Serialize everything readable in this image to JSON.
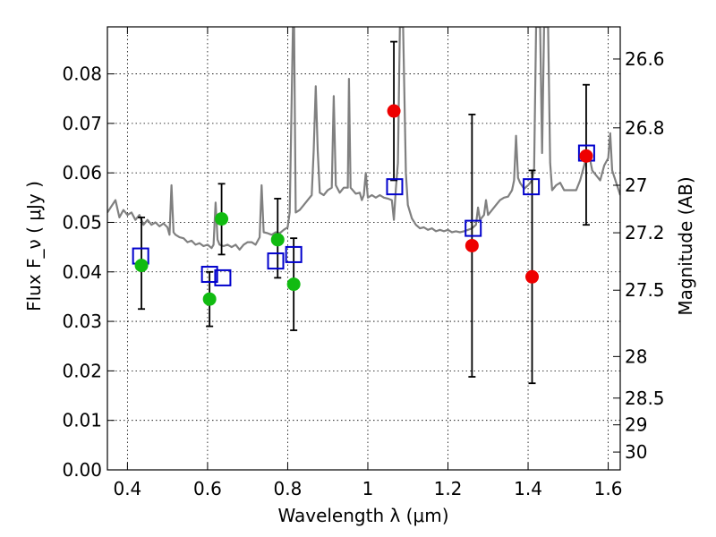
{
  "chart_data": {
    "type": "scatter",
    "xlabel": "Wavelength  λ (μm)",
    "ylabel": "Flux  F_ν  ( μJy )",
    "y2label": "Magnitude (AB)",
    "xlim": [
      0.35,
      1.63
    ],
    "ylim": [
      0.0,
      0.0895
    ],
    "grid": true,
    "x_ticks": [
      "0.4",
      "0.6",
      "0.8",
      "1",
      "1.2",
      "1.4",
      "1.6"
    ],
    "y_ticks": [
      "0.00",
      "0.01",
      "0.02",
      "0.03",
      "0.04",
      "0.05",
      "0.06",
      "0.07",
      "0.08"
    ],
    "y2_ticks": [
      {
        "label": "26.6",
        "flux": 0.083
      },
      {
        "label": "26.8",
        "flux": 0.0691
      },
      {
        "label": "27",
        "flux": 0.0575
      },
      {
        "label": "27.2",
        "flux": 0.0479
      },
      {
        "label": "27.5",
        "flux": 0.0363
      },
      {
        "label": "28",
        "flux": 0.0229
      },
      {
        "label": "28.5",
        "flux": 0.0145
      },
      {
        "label": "29",
        "flux": 0.0091
      },
      {
        "label": "30",
        "flux": 0.0036
      }
    ],
    "colors": {
      "spectrum": "#808080",
      "green": "#11bb11",
      "red": "#ee0000",
      "square": "#0000cc",
      "errorbar": "#000000",
      "grid": "#000000"
    },
    "series": [
      {
        "kind": "spectrum-line",
        "points": [
          [
            0.35,
            0.052
          ],
          [
            0.37,
            0.0545
          ],
          [
            0.38,
            0.051
          ],
          [
            0.39,
            0.0525
          ],
          [
            0.4,
            0.0515
          ],
          [
            0.41,
            0.052
          ],
          [
            0.42,
            0.0505
          ],
          [
            0.43,
            0.0515
          ],
          [
            0.44,
            0.0495
          ],
          [
            0.45,
            0.0505
          ],
          [
            0.46,
            0.0495
          ],
          [
            0.47,
            0.05
          ],
          [
            0.48,
            0.0492
          ],
          [
            0.49,
            0.0498
          ],
          [
            0.5,
            0.049
          ],
          [
            0.505,
            0.0475
          ],
          [
            0.51,
            0.0575
          ],
          [
            0.515,
            0.048
          ],
          [
            0.52,
            0.0475
          ],
          [
            0.53,
            0.047
          ],
          [
            0.54,
            0.0468
          ],
          [
            0.55,
            0.046
          ],
          [
            0.56,
            0.0463
          ],
          [
            0.57,
            0.0455
          ],
          [
            0.58,
            0.0458
          ],
          [
            0.59,
            0.0452
          ],
          [
            0.6,
            0.0455
          ],
          [
            0.61,
            0.0448
          ],
          [
            0.615,
            0.0455
          ],
          [
            0.62,
            0.054
          ],
          [
            0.625,
            0.0465
          ],
          [
            0.63,
            0.0455
          ],
          [
            0.64,
            0.0452
          ],
          [
            0.65,
            0.0455
          ],
          [
            0.66,
            0.045
          ],
          [
            0.67,
            0.0455
          ],
          [
            0.68,
            0.0445
          ],
          [
            0.69,
            0.0455
          ],
          [
            0.7,
            0.046
          ],
          [
            0.71,
            0.046
          ],
          [
            0.72,
            0.0455
          ],
          [
            0.73,
            0.047
          ],
          [
            0.735,
            0.0575
          ],
          [
            0.74,
            0.048
          ],
          [
            0.75,
            0.0478
          ],
          [
            0.76,
            0.0475
          ],
          [
            0.77,
            0.048
          ],
          [
            0.78,
            0.0478
          ],
          [
            0.79,
            0.0485
          ],
          [
            0.8,
            0.049
          ],
          [
            0.805,
            0.052
          ],
          [
            0.81,
            0.075
          ],
          [
            0.813,
            0.0895
          ],
          [
            0.816,
            0.0895
          ],
          [
            0.82,
            0.052
          ],
          [
            0.83,
            0.0525
          ],
          [
            0.84,
            0.0535
          ],
          [
            0.85,
            0.0545
          ],
          [
            0.86,
            0.0555
          ],
          [
            0.865,
            0.0645
          ],
          [
            0.87,
            0.0775
          ],
          [
            0.875,
            0.0645
          ],
          [
            0.88,
            0.056
          ],
          [
            0.89,
            0.0555
          ],
          [
            0.9,
            0.0565
          ],
          [
            0.91,
            0.057
          ],
          [
            0.915,
            0.0755
          ],
          [
            0.92,
            0.0575
          ],
          [
            0.93,
            0.056
          ],
          [
            0.94,
            0.057
          ],
          [
            0.95,
            0.057
          ],
          [
            0.953,
            0.079
          ],
          [
            0.957,
            0.057
          ],
          [
            0.97,
            0.0558
          ],
          [
            0.98,
            0.056
          ],
          [
            0.985,
            0.0545
          ],
          [
            0.99,
            0.0555
          ],
          [
            0.995,
            0.06
          ],
          [
            1.0,
            0.055
          ],
          [
            1.01,
            0.0555
          ],
          [
            1.02,
            0.055
          ],
          [
            1.03,
            0.0555
          ],
          [
            1.04,
            0.055
          ],
          [
            1.05,
            0.0548
          ],
          [
            1.06,
            0.0545
          ],
          [
            1.065,
            0.0505
          ],
          [
            1.07,
            0.0568
          ],
          [
            1.075,
            0.062
          ],
          [
            1.08,
            0.0895
          ],
          [
            1.088,
            0.0895
          ],
          [
            1.095,
            0.06
          ],
          [
            1.1,
            0.0535
          ],
          [
            1.11,
            0.0508
          ],
          [
            1.12,
            0.0495
          ],
          [
            1.13,
            0.0488
          ],
          [
            1.14,
            0.049
          ],
          [
            1.15,
            0.0485
          ],
          [
            1.16,
            0.0488
          ],
          [
            1.17,
            0.0482
          ],
          [
            1.18,
            0.0485
          ],
          [
            1.19,
            0.0482
          ],
          [
            1.2,
            0.0485
          ],
          [
            1.21,
            0.048
          ],
          [
            1.22,
            0.0482
          ],
          [
            1.23,
            0.048
          ],
          [
            1.24,
            0.0482
          ],
          [
            1.25,
            0.0485
          ],
          [
            1.26,
            0.0488
          ],
          [
            1.27,
            0.0495
          ],
          [
            1.275,
            0.053
          ],
          [
            1.28,
            0.0505
          ],
          [
            1.29,
            0.0515
          ],
          [
            1.295,
            0.0545
          ],
          [
            1.3,
            0.0515
          ],
          [
            1.31,
            0.0525
          ],
          [
            1.32,
            0.0535
          ],
          [
            1.33,
            0.0545
          ],
          [
            1.34,
            0.055
          ],
          [
            1.35,
            0.0552
          ],
          [
            1.36,
            0.0565
          ],
          [
            1.365,
            0.0585
          ],
          [
            1.37,
            0.0675
          ],
          [
            1.375,
            0.059
          ],
          [
            1.38,
            0.058
          ],
          [
            1.39,
            0.0568
          ],
          [
            1.4,
            0.0575
          ],
          [
            1.41,
            0.0585
          ],
          [
            1.415,
            0.061
          ],
          [
            1.42,
            0.0895
          ],
          [
            1.43,
            0.0895
          ],
          [
            1.435,
            0.064
          ],
          [
            1.44,
            0.0895
          ],
          [
            1.45,
            0.0895
          ],
          [
            1.455,
            0.062
          ],
          [
            1.46,
            0.0565
          ],
          [
            1.47,
            0.0575
          ],
          [
            1.48,
            0.058
          ],
          [
            1.49,
            0.0565
          ],
          [
            1.5,
            0.0565
          ],
          [
            1.51,
            0.0565
          ],
          [
            1.52,
            0.0565
          ],
          [
            1.53,
            0.0585
          ],
          [
            1.54,
            0.0615
          ],
          [
            1.55,
            0.0645
          ],
          [
            1.56,
            0.0605
          ],
          [
            1.57,
            0.0595
          ],
          [
            1.58,
            0.0585
          ],
          [
            1.59,
            0.0615
          ],
          [
            1.6,
            0.063
          ],
          [
            1.605,
            0.068
          ],
          [
            1.61,
            0.0605
          ],
          [
            1.62,
            0.058
          ],
          [
            1.63,
            0.0555
          ]
        ]
      },
      {
        "kind": "green-circles",
        "points": [
          {
            "x": 0.435,
            "y": 0.0413,
            "err": [
              0.0325,
              0.051
            ]
          },
          {
            "x": 0.605,
            "y": 0.0345,
            "err": [
              0.029,
              0.04
            ]
          },
          {
            "x": 0.635,
            "y": 0.0507,
            "err": [
              0.0435,
              0.0578
            ]
          },
          {
            "x": 0.775,
            "y": 0.0465,
            "err": [
              0.0388,
              0.0548
            ]
          },
          {
            "x": 0.815,
            "y": 0.0375,
            "err": [
              0.0282,
              0.0468
            ]
          }
        ]
      },
      {
        "kind": "red-circles",
        "points": [
          {
            "x": 1.065,
            "y": 0.0725,
            "err": [
              0.0585,
              0.0865
            ]
          },
          {
            "x": 1.26,
            "y": 0.0453,
            "err": [
              0.0188,
              0.0718
            ]
          },
          {
            "x": 1.41,
            "y": 0.039,
            "err": [
              0.0175,
              0.0605
            ]
          },
          {
            "x": 1.545,
            "y": 0.0634,
            "err": [
              0.0495,
              0.0778
            ]
          }
        ]
      },
      {
        "kind": "open-squares",
        "points": [
          {
            "x": 0.433,
            "y": 0.0432
          },
          {
            "x": 0.605,
            "y": 0.0395
          },
          {
            "x": 0.638,
            "y": 0.0388
          },
          {
            "x": 0.77,
            "y": 0.0422
          },
          {
            "x": 0.815,
            "y": 0.0435
          },
          {
            "x": 1.067,
            "y": 0.0572
          },
          {
            "x": 1.263,
            "y": 0.0488
          },
          {
            "x": 1.408,
            "y": 0.0572
          },
          {
            "x": 1.546,
            "y": 0.064
          }
        ]
      }
    ]
  }
}
